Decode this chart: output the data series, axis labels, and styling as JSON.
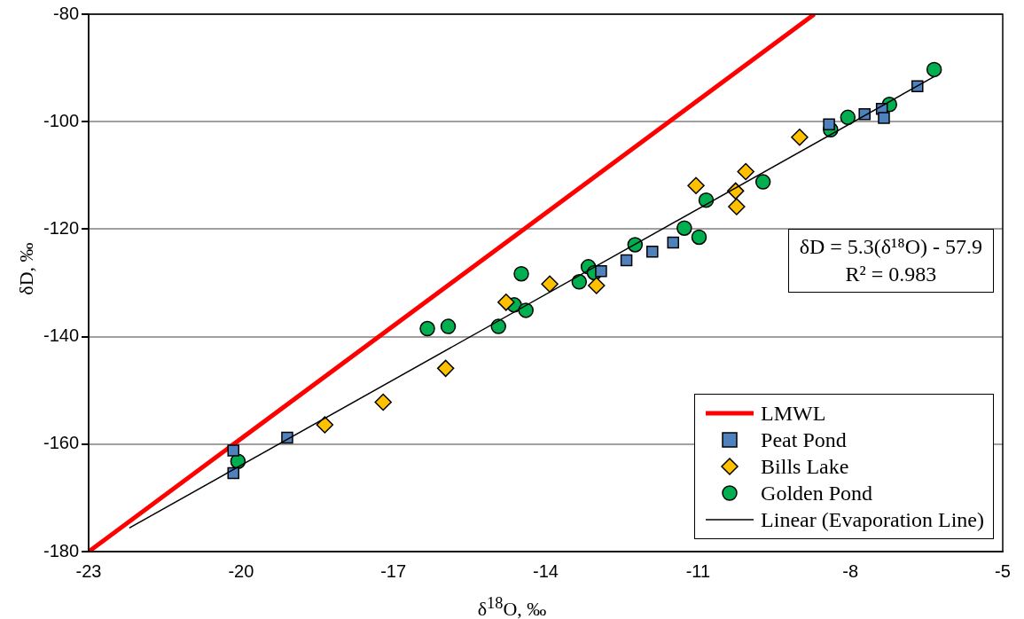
{
  "chart_data": {
    "type": "scatter",
    "xlabel": "δ$^{18}$O, ‰",
    "ylabel": "δD, ‰",
    "xlim": [
      -23,
      -5
    ],
    "xticks": [
      -23,
      -20,
      -17,
      -14,
      -11,
      -8,
      -5
    ],
    "ylim": [
      -180,
      -80
    ],
    "yticks": [
      -180,
      -160,
      -140,
      -120,
      -100,
      -80
    ],
    "grid": "y",
    "legend": "bottom right",
    "annotations": [
      "δD = 5.3(δ¹⁸O) - 57.9",
      "R² = 0.983"
    ],
    "series": [
      {
        "name": "LMWL",
        "type": "line",
        "color": "#ff0000",
        "marker": "none",
        "x": [
          -23,
          -8.71
        ],
        "values": [
          -180,
          -80
        ]
      },
      {
        "name": "Peat Pond",
        "type": "scatter",
        "color": "#4f81bd",
        "marker": "square",
        "x": [
          -20.15,
          -20.15,
          -19.09,
          -12.91,
          -12.41,
          -11.9,
          -11.49,
          -8.42,
          -7.72,
          -7.38,
          -7.34,
          -6.68
        ],
        "values": [
          -161.2,
          -165.4,
          -158.8,
          -127.8,
          -125.8,
          -124.2,
          -122.5,
          -100.5,
          -98.6,
          -97.6,
          -99.3,
          -93.4
        ]
      },
      {
        "name": "Bills Lake",
        "type": "scatter",
        "color": "#ffc000",
        "marker": "diamond",
        "x": [
          -18.35,
          -17.2,
          -15.97,
          -14.78,
          -13.92,
          -13.0,
          -11.04,
          -10.06,
          -10.26,
          -10.24,
          -9.0
        ],
        "values": [
          -156.4,
          -152.2,
          -145.9,
          -133.6,
          -130.2,
          -130.5,
          -111.9,
          -109.3,
          -112.9,
          -115.8,
          -102.9
        ]
      },
      {
        "name": "Golden Pond",
        "type": "scatter",
        "color": "#00b050",
        "marker": "circle",
        "x": [
          -20.06,
          -16.33,
          -15.92,
          -14.93,
          -14.48,
          -14.62,
          -14.39,
          -13.34,
          -13.16,
          -13.04,
          -12.24,
          -11.27,
          -10.98,
          -10.84,
          -9.72,
          -8.39,
          -8.05,
          -7.23,
          -6.35
        ],
        "values": [
          -163.2,
          -138.5,
          -138.1,
          -138.1,
          -128.3,
          -134.1,
          -135.1,
          -129.8,
          -127.0,
          -128.1,
          -122.9,
          -119.8,
          -121.5,
          -114.6,
          -111.2,
          -101.5,
          -99.2,
          -96.8,
          -90.3
        ]
      },
      {
        "name": "Linear (Evaporation Line)",
        "type": "line",
        "color": "#000000",
        "marker": "none",
        "x": [
          -22.2,
          -6.35
        ],
        "values": [
          -175.6,
          -91.6
        ]
      }
    ]
  }
}
